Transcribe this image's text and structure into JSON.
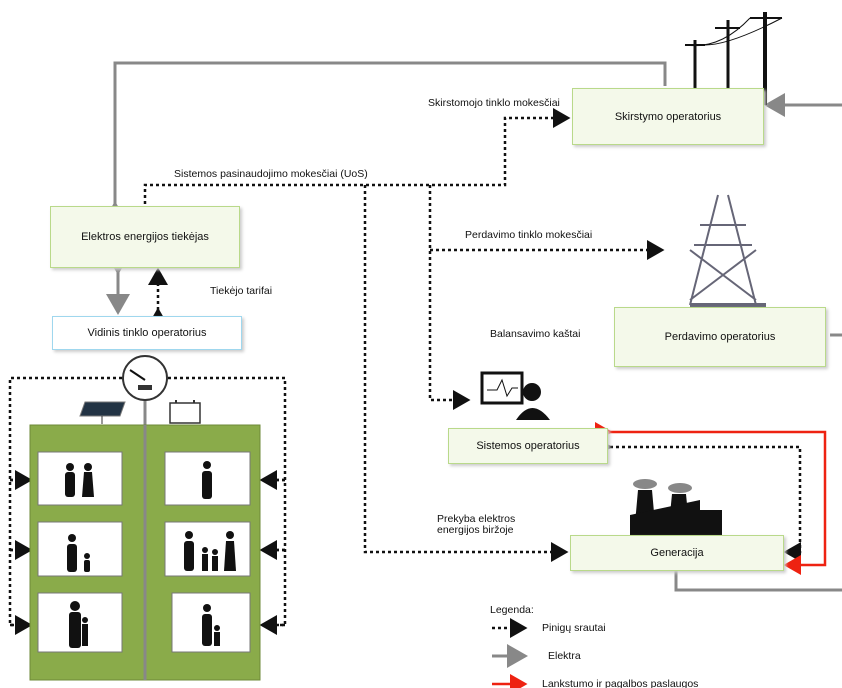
{
  "nodes": [
    {
      "id": "dso",
      "label": "Skirstymo operatorius"
    },
    {
      "id": "supplier",
      "label": "Elektros energijos tiekėjas"
    },
    {
      "id": "internal",
      "label": "Vidinis tinklo operatorius"
    },
    {
      "id": "tso",
      "label": "Perdavimo operatorius"
    },
    {
      "id": "so",
      "label": "Sistemos operatorius"
    },
    {
      "id": "gen",
      "label": "Generacija"
    }
  ],
  "edge_labels": {
    "distribution_fees": "Skirstomojo tinklo mokesčiai",
    "uos": "Sistemos pasinaudojimo mokesčiai (UoS)",
    "transmission_fees": "Perdavimo tinklo mokesčiai",
    "supplier_tariffs": "Tiekėjo tarifai",
    "balancing": "Balansavimo kaštai",
    "exchange": [
      "Prekyba elektros",
      "energijos biržoje"
    ]
  },
  "legend": {
    "title": "Legenda:",
    "items": [
      "Pinigų srautai",
      "Elektra",
      "Lankstumo ir pagalbos paslaugos"
    ]
  }
}
